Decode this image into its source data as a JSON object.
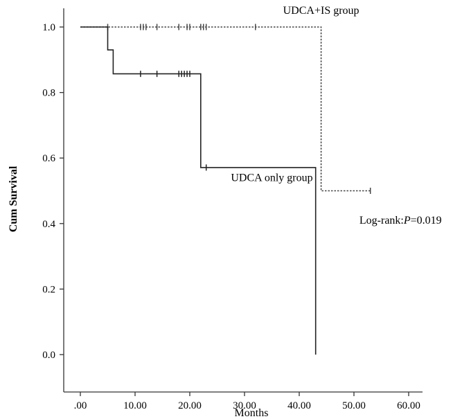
{
  "chart_data": {
    "type": "line",
    "subtype": "kaplan-meier",
    "title": "",
    "xlabel": "Months",
    "ylabel": "Cum Survival",
    "xlim": [
      0,
      60
    ],
    "ylim": [
      0,
      1.0
    ],
    "xticks": [
      ".00",
      "10.00",
      "20.00",
      "30.00",
      "40.00",
      "50.00",
      "60.00"
    ],
    "xtick_values": [
      0,
      10,
      20,
      30,
      40,
      50,
      60
    ],
    "yticks": [
      "0.0",
      "0.2",
      "0.4",
      "0.6",
      "0.8",
      "1.0"
    ],
    "ytick_values": [
      0,
      0.2,
      0.4,
      0.6,
      0.8,
      1.0
    ],
    "grid": false,
    "series": [
      {
        "name": "UDCA+IS group",
        "style": "dotted",
        "color": "#444444",
        "steps": [
          [
            0,
            1.0
          ],
          [
            44,
            1.0
          ],
          [
            44,
            0.5
          ],
          [
            53,
            0.5
          ]
        ],
        "censored": [
          [
            5,
            1.0
          ],
          [
            11,
            1.0
          ],
          [
            11.5,
            1.0
          ],
          [
            12,
            1.0
          ],
          [
            14,
            1.0
          ],
          [
            18,
            1.0
          ],
          [
            19.5,
            1.0
          ],
          [
            20,
            1.0
          ],
          [
            22,
            1.0
          ],
          [
            22.5,
            1.0
          ],
          [
            23,
            1.0
          ],
          [
            32,
            1.0
          ],
          [
            53,
            0.5
          ]
        ]
      },
      {
        "name": "UDCA only group",
        "style": "solid",
        "color": "#222222",
        "steps": [
          [
            0,
            1.0
          ],
          [
            5,
            1.0
          ],
          [
            5,
            0.93
          ],
          [
            6,
            0.93
          ],
          [
            6,
            0.857
          ],
          [
            22,
            0.857
          ],
          [
            22,
            0.571
          ],
          [
            43,
            0.571
          ],
          [
            43,
            0.0
          ]
        ],
        "censored": [
          [
            11,
            0.857
          ],
          [
            14,
            0.857
          ],
          [
            18,
            0.857
          ],
          [
            18.5,
            0.857
          ],
          [
            19,
            0.857
          ],
          [
            19.5,
            0.857
          ],
          [
            20,
            0.857
          ],
          [
            23,
            0.571
          ]
        ]
      }
    ],
    "annotations": [
      {
        "id": "label-is",
        "text": "UDCA+IS group",
        "x": 44,
        "y": 1.04,
        "anchor": "middle"
      },
      {
        "id": "label-only",
        "text": "UDCA only group",
        "x": 35,
        "y": 0.53,
        "anchor": "middle"
      },
      {
        "id": "pvalue",
        "text_prefix": "Log-rank:",
        "text_p": "P",
        "text_suffix": "=0.019",
        "x": 51,
        "y": 0.4,
        "anchor": "start"
      }
    ]
  }
}
